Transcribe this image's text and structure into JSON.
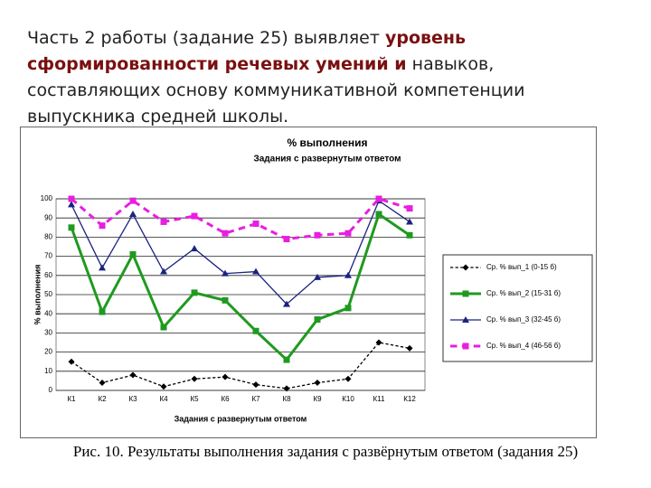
{
  "slide_text": [
    "Часть 2 работы (задание 25) выявляет ",
    "уровень сформированности речевых умений и",
    " навыков, составляющих основу коммуникативной компетенции выпускника средней школы."
  ],
  "caption": "Рис. 10. Результаты выполнения задания с развёрнутым ответом (задания 25)",
  "chart_data": {
    "type": "line",
    "title": "% выполнения",
    "subtitle": "Задания с развернутым ответом",
    "x_label": "Задания с развернутым ответом",
    "y_label": "% выполнения",
    "categories": [
      "К1",
      "К2",
      "К3",
      "К4",
      "К5",
      "К6",
      "К7",
      "К8",
      "К9",
      "К10",
      "К11",
      "К12"
    ],
    "ylim": [
      0,
      100
    ],
    "yticks": [
      0,
      10,
      20,
      30,
      40,
      50,
      60,
      70,
      80,
      90,
      100
    ],
    "grid": true,
    "legend": "right",
    "series": [
      {
        "name": "Ср. % вып_1 (0-15 б)",
        "color": "#000000",
        "style": "dashed",
        "marker": "diamond",
        "values": [
          15,
          4,
          8,
          2,
          6,
          7,
          3,
          1,
          4,
          6,
          25,
          22
        ]
      },
      {
        "name": "Ср. % вып_2 (15-31 б)",
        "color": "#1f9a1f",
        "style": "solid",
        "marker": "square",
        "values": [
          85,
          41,
          71,
          33,
          51,
          47,
          31,
          16,
          37,
          43,
          92,
          81
        ]
      },
      {
        "name": "Ср. % вып_3 (32-45 б)",
        "color": "#1a237e",
        "style": "solid",
        "marker": "triangle",
        "values": [
          97,
          64,
          92,
          62,
          74,
          61,
          62,
          45,
          59,
          60,
          99,
          88
        ]
      },
      {
        "name": "Ср. % вып_4 (46-56 б)",
        "color": "#e81ee0",
        "style": "dashed",
        "marker": "square",
        "values": [
          100,
          86,
          99,
          88,
          91,
          82,
          87,
          79,
          81,
          82,
          100,
          95
        ]
      }
    ]
  }
}
